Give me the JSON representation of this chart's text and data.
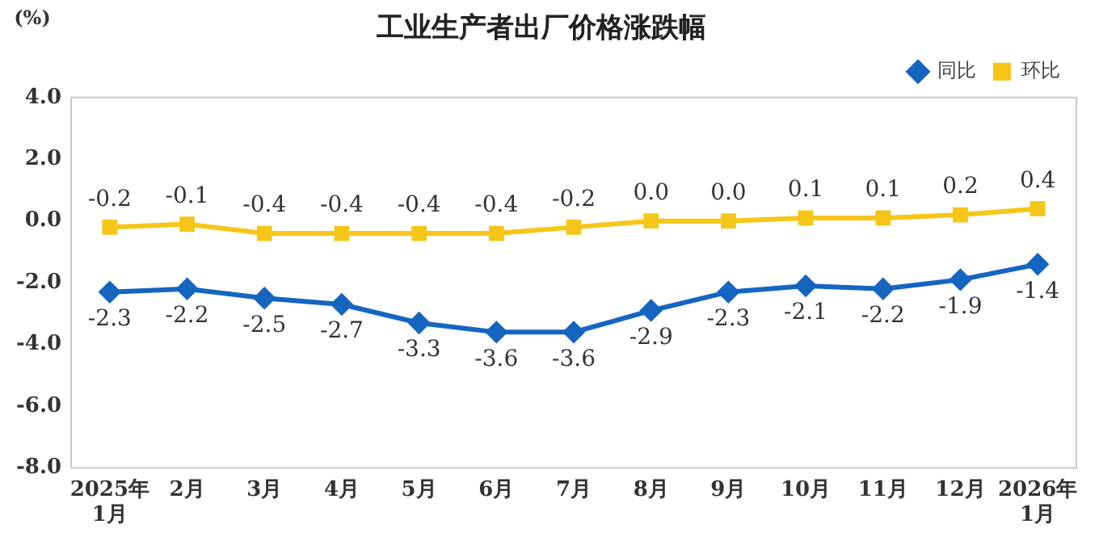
{
  "chart_data": {
    "type": "line",
    "title": "工业生产者出厂价格涨跌幅",
    "ylabel": "(%)",
    "categories": [
      "2025年\n1月",
      "2月",
      "3月",
      "4月",
      "5月",
      "6月",
      "7月",
      "8月",
      "9月",
      "10月",
      "11月",
      "12月",
      "2026年\n1月"
    ],
    "series": [
      {
        "name": "同比",
        "color": "#1565c0",
        "marker": "diamond",
        "values": [
          -2.3,
          -2.2,
          -2.5,
          -2.7,
          -3.3,
          -3.6,
          -3.6,
          -2.9,
          -2.3,
          -2.1,
          -2.2,
          -1.9,
          -1.4
        ],
        "value_labels": [
          "-2.3",
          "-2.2",
          "-2.5",
          "-2.7",
          "-3.3",
          "-3.6",
          "-3.6",
          "-2.9",
          "-2.3",
          "-2.1",
          "-2.2",
          "-1.9",
          "-1.4"
        ]
      },
      {
        "name": "环比",
        "color": "#f5c518",
        "marker": "square",
        "values": [
          -0.2,
          -0.1,
          -0.4,
          -0.4,
          -0.4,
          -0.4,
          -0.2,
          0.0,
          0.0,
          0.1,
          0.1,
          0.2,
          0.4
        ],
        "value_labels": [
          "-0.2",
          "-0.1",
          "-0.4",
          "-0.4",
          "-0.4",
          "-0.4",
          "-0.2",
          "0.0",
          "0.0",
          "0.1",
          "0.1",
          "0.2",
          "0.4"
        ]
      }
    ],
    "ylim": [
      -8,
      4
    ],
    "yticks": [
      {
        "value": -8,
        "label": "-8.0"
      },
      {
        "value": -6,
        "label": "-6.0"
      },
      {
        "value": -4,
        "label": "-4.0"
      },
      {
        "value": -2,
        "label": "-2.0"
      },
      {
        "value": 0,
        "label": "0.0"
      },
      {
        "value": 2,
        "label": "2.0"
      },
      {
        "value": 4,
        "label": "4.0"
      }
    ],
    "grid": false,
    "legend": "top right",
    "line_style": "solid"
  }
}
